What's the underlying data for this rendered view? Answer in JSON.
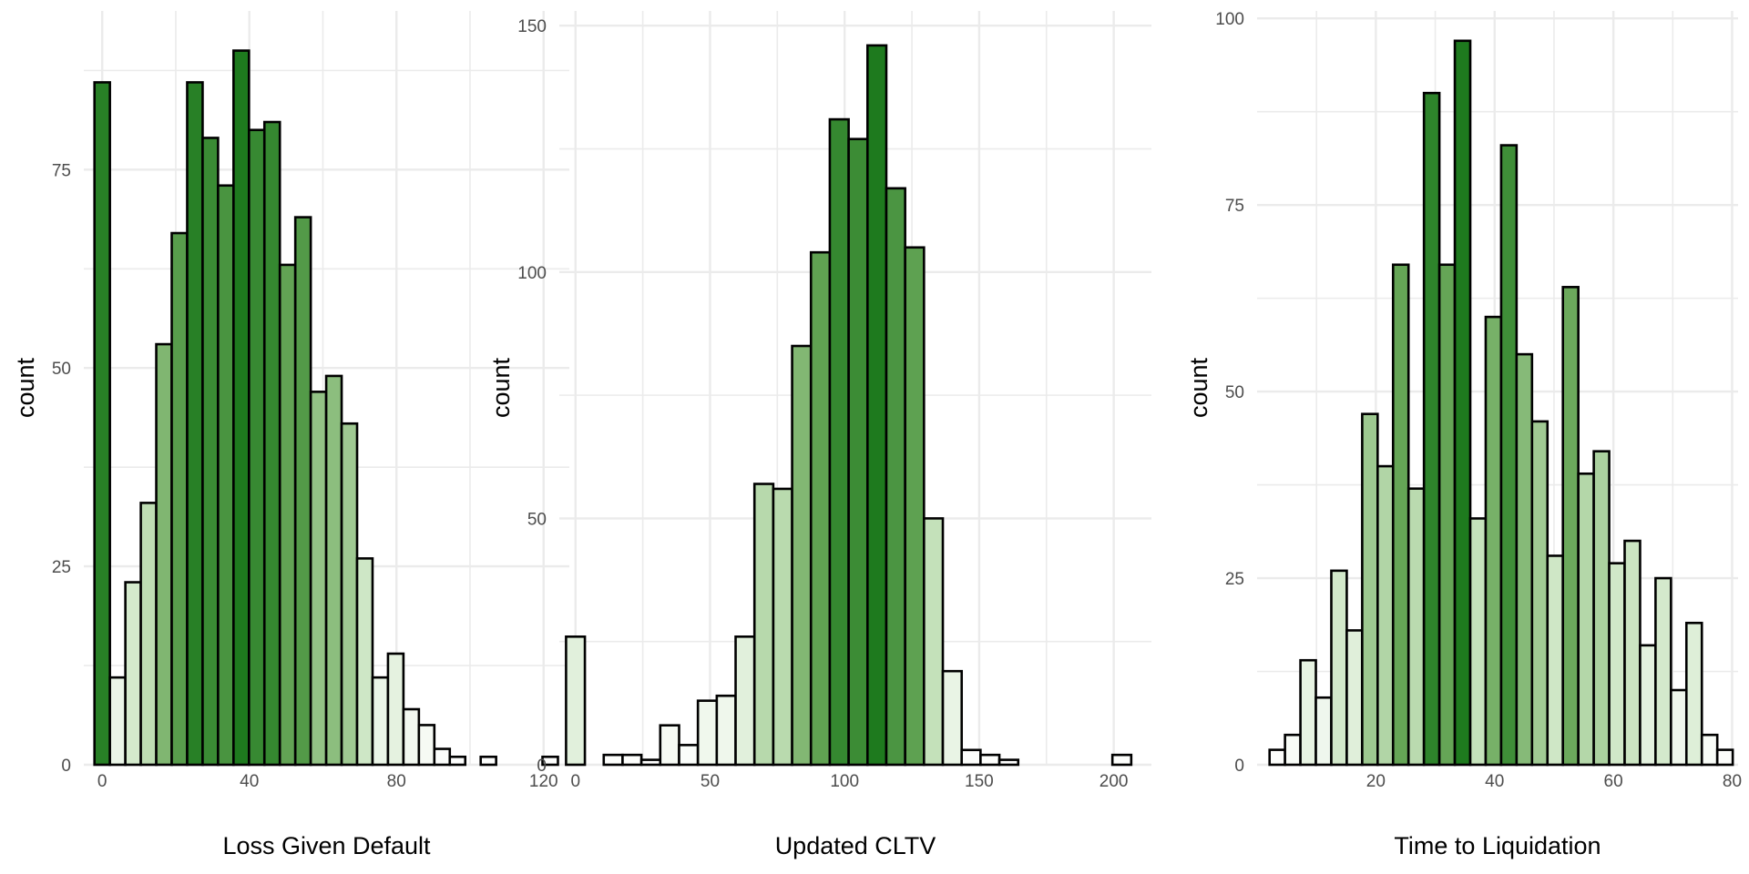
{
  "figure": {
    "background": "#ffffff",
    "grid_color": "#ebebeb",
    "outline_color": "#000000",
    "fill_scale": [
      "#ffffff",
      "#c7e3bd",
      "#6aa85a",
      "#1e7a1e"
    ]
  },
  "chart_data": [
    {
      "type": "bar",
      "subtype": "histogram",
      "xlabel": "Loss Given Default",
      "ylabel": "count",
      "xlim": [
        -5,
        127
      ],
      "ylim": [
        0,
        95
      ],
      "xticks": [
        0,
        40,
        80,
        120
      ],
      "xtick_labels": [
        "0",
        "40",
        "80",
        "120"
      ],
      "yticks": [
        0,
        25,
        50,
        75
      ],
      "ytick_labels": [
        "0",
        "25",
        "50",
        "75"
      ],
      "grid": true,
      "legend": "none",
      "bin_width": 4.2,
      "bin_centers": [
        0,
        4.2,
        8.4,
        12.6,
        16.8,
        21,
        25.2,
        29.4,
        33.6,
        37.8,
        42,
        46.2,
        50.4,
        54.6,
        58.8,
        63,
        67.2,
        71.4,
        75.6,
        79.8,
        84,
        88.2,
        92.4,
        96.6,
        100.8,
        105,
        109.2,
        113.4,
        117.6,
        121.8
      ],
      "values": [
        86,
        11,
        23,
        33,
        53,
        67,
        86,
        79,
        73,
        90,
        80,
        81,
        63,
        69,
        47,
        49,
        43,
        26,
        11,
        14,
        7,
        5,
        2,
        1,
        0,
        1,
        0,
        0,
        0,
        1
      ]
    },
    {
      "type": "bar",
      "subtype": "histogram",
      "xlabel": "Updated CLTV",
      "ylabel": "count",
      "xlim": [
        -6,
        214
      ],
      "ylim": [
        0,
        153
      ],
      "xticks": [
        0,
        50,
        100,
        150,
        200
      ],
      "xtick_labels": [
        "0",
        "50",
        "100",
        "150",
        "200"
      ],
      "yticks": [
        0,
        50,
        100,
        150
      ],
      "ytick_labels": [
        "0",
        "50",
        "100",
        "150"
      ],
      "grid": true,
      "legend": "none",
      "bin_width": 7,
      "bin_centers": [
        0,
        7,
        14,
        21,
        28,
        35,
        42,
        49,
        56,
        63,
        70,
        77,
        84,
        91,
        98,
        105,
        112,
        119,
        126,
        133,
        140,
        147,
        154,
        161,
        168,
        175,
        182,
        189,
        196,
        203
      ],
      "values": [
        26,
        0,
        2,
        2,
        1,
        8,
        4,
        13,
        14,
        26,
        57,
        56,
        85,
        104,
        131,
        127,
        146,
        117,
        105,
        50,
        19,
        3,
        2,
        1,
        0,
        0,
        0,
        0,
        0,
        2
      ]
    },
    {
      "type": "bar",
      "subtype": "histogram",
      "xlabel": "Time to Liquidation",
      "ylabel": "count",
      "xlim": [
        0,
        81
      ],
      "ylim": [
        0,
        101
      ],
      "xticks": [
        20,
        40,
        60,
        80
      ],
      "xtick_labels": [
        "20",
        "40",
        "60",
        "80"
      ],
      "yticks": [
        0,
        25,
        50,
        75,
        100
      ],
      "ytick_labels": [
        "0",
        "25",
        "50",
        "75",
        "100"
      ],
      "grid": true,
      "legend": "none",
      "bin_width": 2.6,
      "bin_centers": [
        3.4,
        6,
        8.6,
        11.2,
        13.8,
        16.4,
        19,
        21.6,
        24.2,
        26.8,
        29.4,
        32,
        34.6,
        37.2,
        39.8,
        42.4,
        45,
        47.6,
        50.2,
        52.8,
        55.4,
        58,
        60.6,
        63.2,
        65.8,
        68.4,
        71,
        73.6,
        76.2,
        78.8
      ],
      "values": [
        2,
        4,
        14,
        9,
        26,
        18,
        47,
        40,
        67,
        37,
        90,
        67,
        97,
        33,
        60,
        83,
        55,
        46,
        28,
        64,
        39,
        42,
        27,
        30,
        16,
        25,
        10,
        19,
        4,
        2
      ]
    }
  ]
}
